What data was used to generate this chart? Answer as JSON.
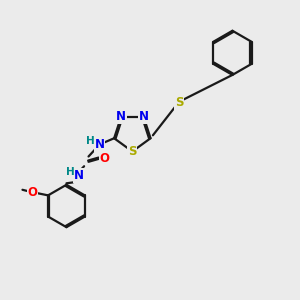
{
  "bg_color": "#ebebeb",
  "bond_color": "#1a1a1a",
  "bond_width": 1.6,
  "atom_colors": {
    "N": "#0000ee",
    "S": "#aaaa00",
    "O": "#ff0000",
    "H": "#008888",
    "C": "#1a1a1a"
  },
  "font_size": 8.5,
  "fig_bg": "#ebebeb"
}
